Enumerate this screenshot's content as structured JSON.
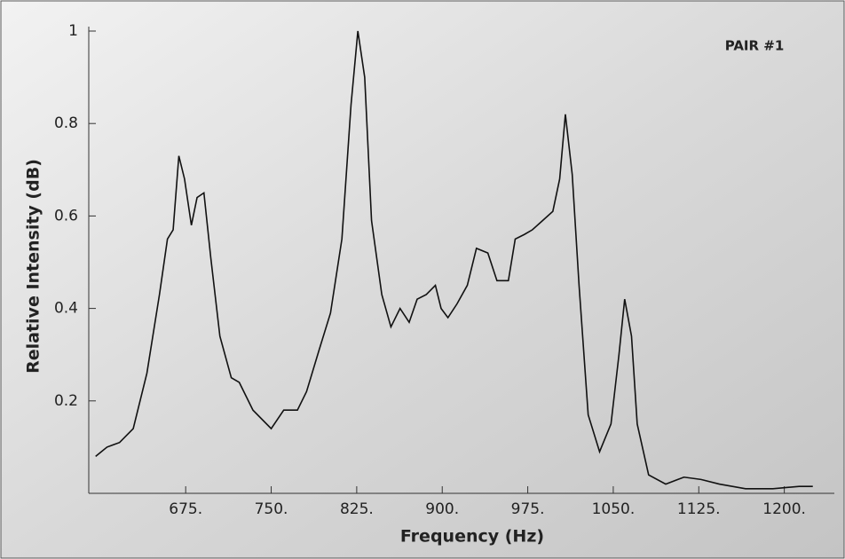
{
  "chart_data": {
    "type": "line",
    "annotation": "PAIR #1",
    "x_label": "Frequency (Hz)",
    "y_label": "Relative Intensity (dB)",
    "xlim": [
      590,
      1240
    ],
    "ylim": [
      0,
      1
    ],
    "xticks": [
      {
        "value": 675,
        "label": "675."
      },
      {
        "value": 750,
        "label": "750."
      },
      {
        "value": 825,
        "label": "825."
      },
      {
        "value": 900,
        "label": "900."
      },
      {
        "value": 975,
        "label": "975."
      },
      {
        "value": 1050,
        "label": "1050."
      },
      {
        "value": 1125,
        "label": "1125."
      },
      {
        "value": 1200,
        "label": "1200."
      }
    ],
    "yticks": [
      0.2,
      0.4,
      0.6,
      0.8,
      1
    ],
    "color": "#111111",
    "x": [
      596,
      606,
      617,
      629,
      641,
      652,
      659,
      664,
      669,
      674,
      680,
      685,
      691,
      697,
      705,
      715,
      722,
      734,
      750,
      761,
      773,
      781,
      792,
      802,
      812,
      820,
      826,
      832,
      838,
      847,
      855,
      863,
      871,
      878,
      886,
      894,
      899,
      905,
      913,
      922,
      930,
      940,
      948,
      958,
      964,
      972,
      979,
      988,
      997,
      1003,
      1008,
      1014,
      1020,
      1028,
      1038,
      1048,
      1055,
      1060,
      1066,
      1071,
      1081,
      1096,
      1112,
      1127,
      1143,
      1166,
      1190,
      1213,
      1225
    ],
    "values": [
      0.08,
      0.1,
      0.11,
      0.14,
      0.26,
      0.43,
      0.55,
      0.57,
      0.73,
      0.68,
      0.58,
      0.64,
      0.65,
      0.51,
      0.34,
      0.25,
      0.24,
      0.18,
      0.14,
      0.18,
      0.18,
      0.22,
      0.31,
      0.39,
      0.55,
      0.84,
      1.0,
      0.9,
      0.59,
      0.43,
      0.36,
      0.4,
      0.37,
      0.42,
      0.43,
      0.45,
      0.4,
      0.38,
      0.41,
      0.45,
      0.53,
      0.52,
      0.46,
      0.46,
      0.55,
      0.56,
      0.57,
      0.59,
      0.61,
      0.68,
      0.82,
      0.69,
      0.45,
      0.17,
      0.09,
      0.15,
      0.3,
      0.42,
      0.34,
      0.15,
      0.04,
      0.02,
      0.035,
      0.03,
      0.02,
      0.01,
      0.01,
      0.015,
      0.015
    ]
  }
}
